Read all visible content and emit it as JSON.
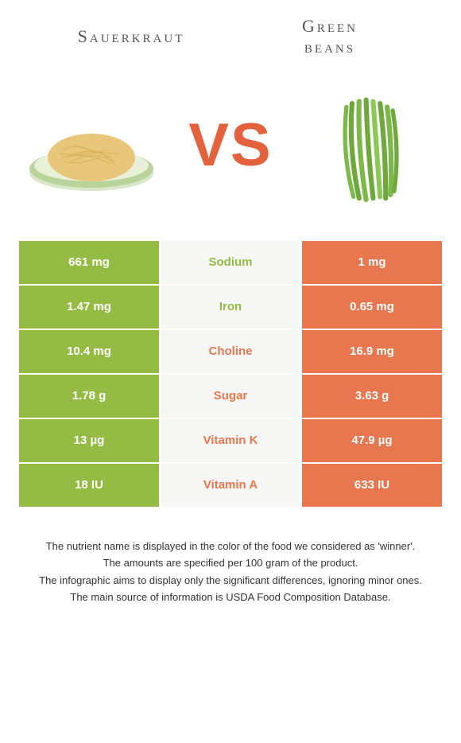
{
  "titles": {
    "left": "Sauerkraut",
    "right_line1": "Green",
    "right_line2": "beans"
  },
  "vs_label": "VS",
  "colors": {
    "green": "#94bb43",
    "orange": "#e8764f",
    "nutrient_bg": "#f7f7f5"
  },
  "rows": [
    {
      "left": "661 mg",
      "nutrient": "Sodium",
      "right": "1 mg",
      "winner": "left"
    },
    {
      "left": "1.47 mg",
      "nutrient": "Iron",
      "right": "0.65 mg",
      "winner": "left"
    },
    {
      "left": "10.4 mg",
      "nutrient": "Choline",
      "right": "16.9 mg",
      "winner": "right"
    },
    {
      "left": "1.78 g",
      "nutrient": "Sugar",
      "right": "3.63 g",
      "winner": "right"
    },
    {
      "left": "13 µg",
      "nutrient": "Vitamin K",
      "right": "47.9 µg",
      "winner": "right"
    },
    {
      "left": "18 IU",
      "nutrient": "Vitamin A",
      "right": "633 IU",
      "winner": "right"
    }
  ],
  "footer": [
    "The nutrient name is displayed in the color of the food we considered as 'winner'.",
    "The amounts are specified per 100 gram of the product.",
    "The infographic aims to display only the significant differences, ignoring minor ones.",
    "The main source of information is USDA Food Composition Database."
  ]
}
